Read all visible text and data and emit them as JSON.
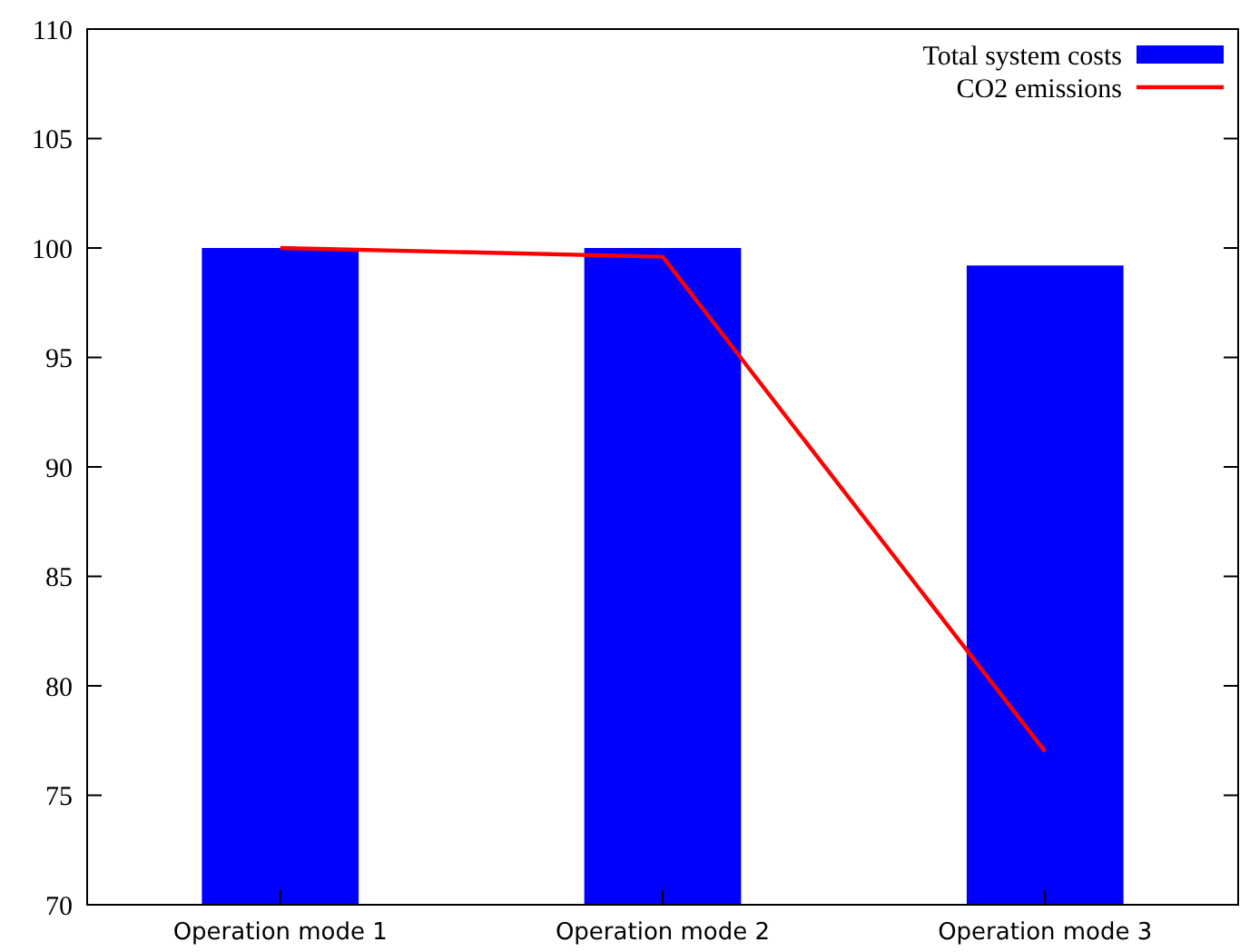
{
  "chart_data": {
    "type": "bar",
    "categories": [
      "Operation mode 1",
      "Operation mode 2",
      "Operation mode 3"
    ],
    "series": [
      {
        "name": "Total system costs",
        "color": "#0000ff",
        "values": [
          100.0,
          100.0,
          99.2
        ]
      },
      {
        "name": "CO2 emissions",
        "color": "#ff0000",
        "type": "line",
        "values": [
          100.0,
          99.6,
          77.0
        ]
      }
    ],
    "ylim": [
      70,
      110
    ],
    "yticks": [
      70,
      75,
      80,
      85,
      90,
      95,
      100,
      105,
      110
    ],
    "legend": "top right",
    "grid": false
  }
}
